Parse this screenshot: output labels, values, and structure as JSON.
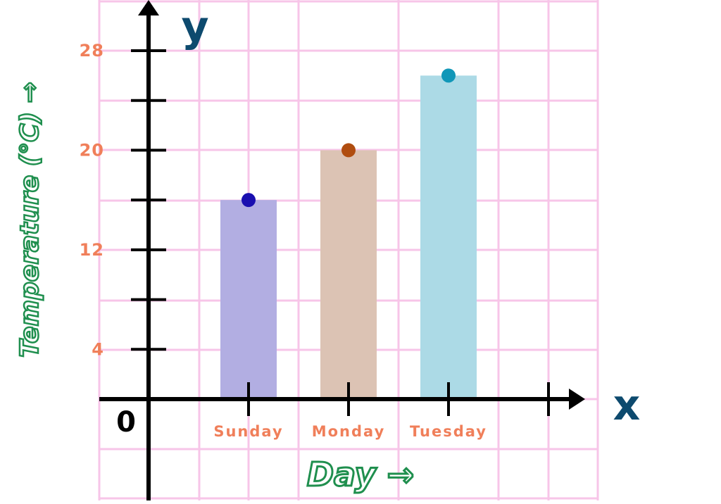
{
  "colors": {
    "grid": "#f7c5e8",
    "axis": "#000000",
    "tick_label": "#f07f5a",
    "axis_letter": "#0d4a6e",
    "axis_title_fill": "#ffffff",
    "axis_title_stroke": "#1f8f4e"
  },
  "chart_data": {
    "type": "bar",
    "categories": [
      "Sunday",
      "Monday",
      "Tuesday"
    ],
    "values": [
      16,
      20,
      26
    ],
    "bar_colors": [
      "#b2aee2",
      "#dcc3b4",
      "#acdae6"
    ],
    "point_colors": [
      "#1a0fb0",
      "#b04d10",
      "#1197b8"
    ],
    "xlabel": "Day →",
    "ylabel": "Temperature (°C) →",
    "x_axis_letter": "x",
    "y_axis_letter": "y",
    "origin_label": "0",
    "yticks": [
      4,
      12,
      20,
      28
    ],
    "ylim": [
      0,
      28
    ],
    "grid": true
  }
}
